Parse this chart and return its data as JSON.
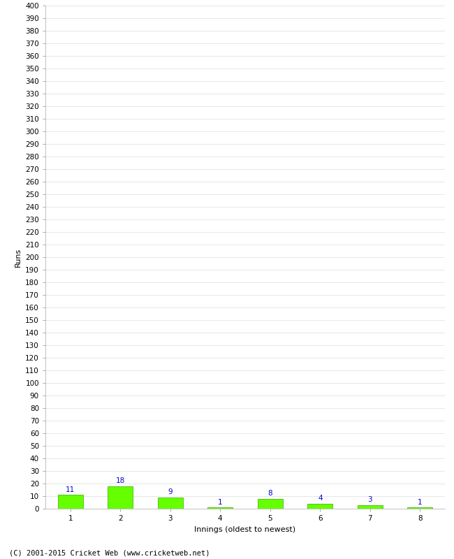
{
  "categories": [
    1,
    2,
    3,
    4,
    5,
    6,
    7,
    8
  ],
  "values": [
    11,
    18,
    9,
    1,
    8,
    4,
    3,
    1
  ],
  "bar_color": "#66ff00",
  "bar_edge_color": "#33aa00",
  "label_color": "#0000cc",
  "xlabel": "Innings (oldest to newest)",
  "ylabel": "Runs",
  "ylim": [
    0,
    400
  ],
  "background_color": "#ffffff",
  "grid_color": "#dddddd",
  "footer": "(C) 2001-2015 Cricket Web (www.cricketweb.net)",
  "label_fontsize": 7.5,
  "axis_tick_fontsize": 7.5,
  "axis_label_fontsize": 8,
  "footer_fontsize": 7.5
}
